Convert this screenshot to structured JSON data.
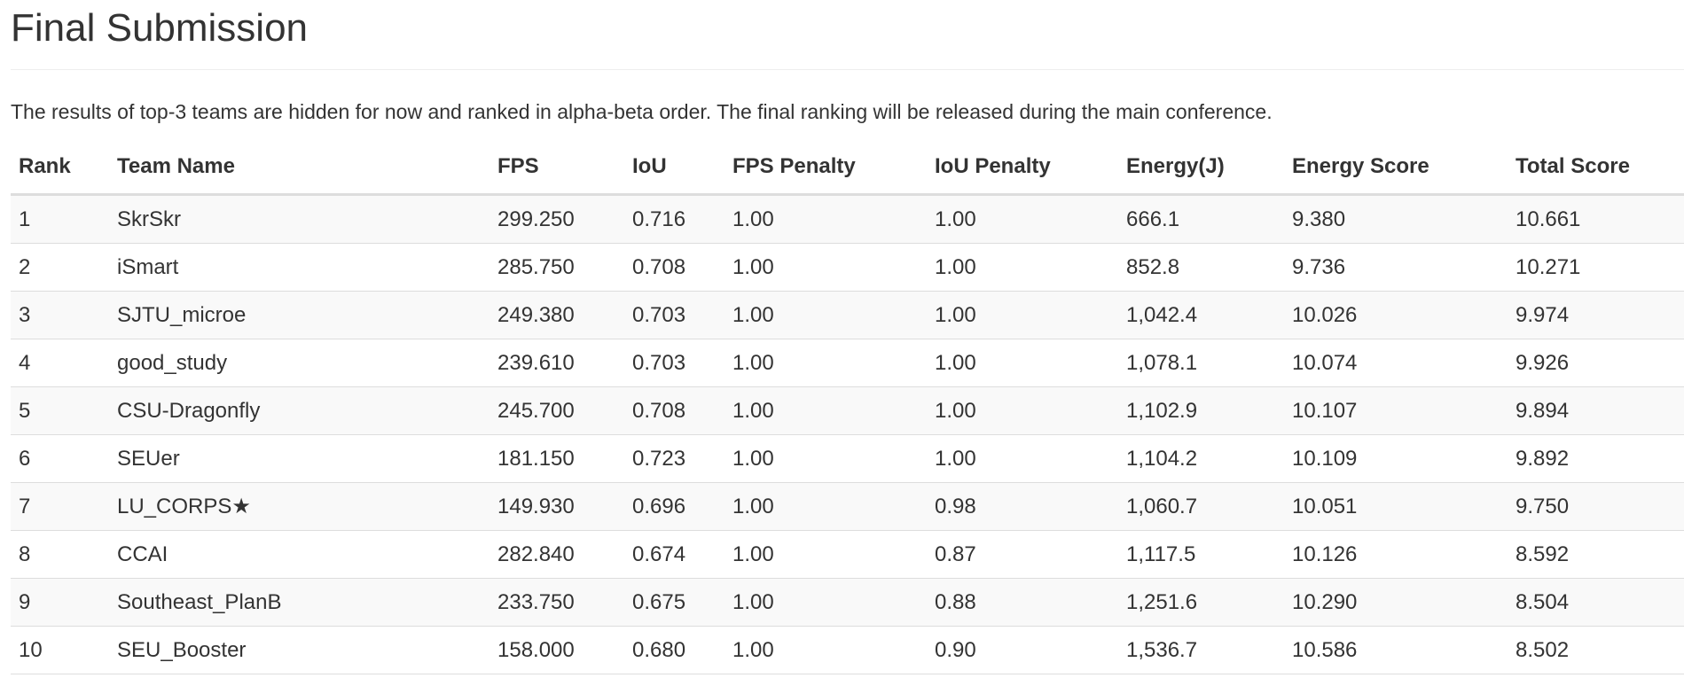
{
  "page": {
    "title": "Final Submission",
    "intro": "The results of top-3 teams are hidden for now and ranked in alpha-beta order. The final ranking will be released during the main conference."
  },
  "table": {
    "columns": [
      "Rank",
      "Team Name",
      "FPS",
      "IoU",
      "FPS Penalty",
      "IoU Penalty",
      "Energy(J)",
      "Energy Score",
      "Total Score"
    ],
    "rows": [
      [
        "1",
        "SkrSkr",
        "299.250",
        "0.716",
        "1.00",
        "1.00",
        "666.1",
        "9.380",
        "10.661"
      ],
      [
        "2",
        "iSmart",
        "285.750",
        "0.708",
        "1.00",
        "1.00",
        "852.8",
        "9.736",
        "10.271"
      ],
      [
        "3",
        "SJTU_microe",
        "249.380",
        "0.703",
        "1.00",
        "1.00",
        "1,042.4",
        "10.026",
        "9.974"
      ],
      [
        "4",
        "good_study",
        "239.610",
        "0.703",
        "1.00",
        "1.00",
        "1,078.1",
        "10.074",
        "9.926"
      ],
      [
        "5",
        "CSU-Dragonfly",
        "245.700",
        "0.708",
        "1.00",
        "1.00",
        "1,102.9",
        "10.107",
        "9.894"
      ],
      [
        "6",
        "SEUer",
        "181.150",
        "0.723",
        "1.00",
        "1.00",
        "1,104.2",
        "10.109",
        "9.892"
      ],
      [
        "7",
        "LU_CORPS★",
        "149.930",
        "0.696",
        "1.00",
        "0.98",
        "1,060.7",
        "10.051",
        "9.750"
      ],
      [
        "8",
        "CCAI",
        "282.840",
        "0.674",
        "1.00",
        "0.87",
        "1,117.5",
        "10.126",
        "8.592"
      ],
      [
        "9",
        "Southeast_PlanB",
        "233.750",
        "0.675",
        "1.00",
        "0.88",
        "1,251.6",
        "10.290",
        "8.504"
      ],
      [
        "10",
        "SEU_Booster",
        "158.000",
        "0.680",
        "1.00",
        "0.90",
        "1,536.7",
        "10.586",
        "8.502"
      ]
    ]
  }
}
